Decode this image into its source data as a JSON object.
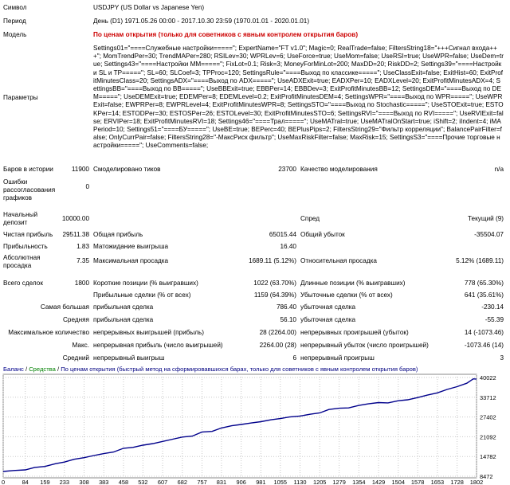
{
  "header": {
    "symbol_label": "Символ",
    "symbol_value": "USDJPY (US Dollar vs Japanese Yen)",
    "period_label": "Период",
    "period_value": "День (D1) 1971.05.26 00:00 - 2017.10.30 23:59 (1970.01.01 - 2020.01.01)",
    "model_label": "Модель",
    "model_value": "По ценам открытия (только для советников с явным контролем открытия баров)",
    "params_label": "Параметры",
    "params_value": "Settings01=\"====Служебные настройки=====\"; ExpertName=\"FT v1.0\"; Magic=0; RealTrade=false; FiltersString18=\"+++Сигнал входа+++\"; MomTrendPer=30; TrendMAPer=280; RSILev=30; WPRLev=6; UseForce=true; UseMom=false; UseRSI=true; UseWPR=false; UseDem=true; Settings43=\"====Настройки MM=====\"; FixLot=0.1; Risk=3; MoneyForMinLot=200; MaxDD=20; RiskDD=2; Settings39=\"====Настройки SL и TP=====\"; SL=60; SLCoef=3; TPProc=120; SettingsRule=\"====Выход по классике=====\"; UseClassExit=false; ExitHist=60; ExitProfitMinutesClass=20; SettingsADX=\"====Выход по ADX=====\"; UseADXExit=true; EADXPer=10; EADXLevel=20; ExitProfitMinutesADX=4; SettingsBB=\"====Выход по BB=====\"; UseBBExit=true; EBBPer=14; EBBDev=3; ExitProfitMinutesBB=12; SettingsDEM=\"====Выход по DEM=====\"; UseDEMExit=true; EDEMPer=8; EDEMLevel=0.2; ExitProfitMinutesDEM=4; SettingsWPR=\"====Выход по WPR=====\"; UseWPRExit=false; EWPRPer=8; EWPRLevel=4; ExitProfitMinutesWPR=8; SettingsSTO=\"====Выход по Stochastic=====\"; UseSTOExit=true; ESTOKPer=14; ESTODPer=30; ESTOSPer=26; ESTOLevel=30; ExitProfitMinutesSTO=6; SettingsRVI=\"====Выход по RVI=====\"; UseRVIExit=false; ERVIPer=18; ExitProfitMinutesRVI=18; Settings46=\"====Трал=====\"; UseMATral=true; UseMATralOnStart=true; iShift=2; iIndent=4; iMAPeriod=10; Settings51=\"====БУ=====\"; UseBE=true; BEPerc=40; BEPlusPips=2; FiltersString29=\"Фильтр корреляции\"; BalancePairFilter=false; OnlyCurrPair=false; FiltersString28=\"-МаксРиск фильтр\"; UseMaxRiskFilter=false; MaxRisk=15; SettingsS3=\"====Прочие торговые настройки=====\"; UseComments=false;"
  },
  "stats": {
    "bars_label": "Баров в истории",
    "bars_value": "11900",
    "ticks_label": "Смоделировано тиков",
    "ticks_value": "23700",
    "quality_label": "Качество моделирования",
    "quality_value": "n/a",
    "errors_label": "Ошибки рассогласования графиков",
    "errors_value": "0",
    "deposit_label": "Начальный депозит",
    "deposit_value": "10000.00",
    "spread_label": "Спред",
    "spread_value": "Текущий (9)",
    "net_profit_label": "Чистая прибыль",
    "net_profit_value": "29511.38",
    "gross_profit_label": "Общая прибыль",
    "gross_profit_value": "65015.44",
    "gross_loss_label": "Общий убыток",
    "gross_loss_value": "-35504.07",
    "pf_label": "Прибыльность",
    "pf_value": "1.83",
    "expected_label": "Матожидание выигрыша",
    "expected_value": "16.40",
    "abs_dd_label": "Абсолютная просадка",
    "abs_dd_value": "7.35",
    "max_dd_label": "Максимальная просадка",
    "max_dd_value": "1689.11 (5.12%)",
    "rel_dd_label": "Относительная просадка",
    "rel_dd_value": "5.12% (1689.11)",
    "total_label": "Всего сделок",
    "total_value": "1800",
    "short_label": "Короткие позиции (% выигравших)",
    "short_value": "1022 (63.70%)",
    "long_label": "Длинные позиции (% выигравших)",
    "long_value": "778 (65.30%)",
    "profit_trades_label": "Прибыльные сделки (% от всех)",
    "profit_trades_value": "1159 (64.39%)",
    "loss_trades_label": "Убыточные сделки (% от всех)",
    "loss_trades_value": "641 (35.61%)",
    "largest_label": "Самая большая",
    "largest_profit_label": "прибыльная сделка",
    "largest_profit_value": "786.40",
    "largest_loss_label": "убыточная сделка",
    "largest_loss_value": "-230.14",
    "avg_label": "Средняя",
    "avg_profit_label": "прибыльная сделка",
    "avg_profit_value": "56.10",
    "avg_loss_label": "убыточная сделка",
    "avg_loss_value": "-55.39",
    "max_count_label": "Максимальное количество",
    "max_win_label": "непрерывных выигрышей (прибыль)",
    "max_win_value": "28 (2264.00)",
    "max_loss_label": "непрерывных проигрышей (убыток)",
    "max_loss_value": "14 (-1073.46)",
    "max_label": "Макс.",
    "max_cont_profit_label": "непрерывная прибыль (число выигрышей)",
    "max_cont_profit_value": "2264.00 (28)",
    "max_cont_loss_label": "непрерывный убыток (число проигрышей)",
    "max_cont_loss_value": "-1073.46 (14)",
    "avg_cons_label": "Средний",
    "avg_cons_win_label": "непрерывный выигрыш",
    "avg_cons_win_value": "6",
    "avg_cons_loss_label": "непрерывный проигрыш",
    "avg_cons_loss_value": "3"
  },
  "chart_data": {
    "type": "line",
    "legend": {
      "balance": "Баланс",
      "sep1": " / ",
      "equity": "Средства",
      "sep2": " / ",
      "note": "По ценам открытия (быстрый метод на сформировавшихся барах, только для советников с явным контролем открытия баров)"
    },
    "colors": {
      "balance": "#00008b",
      "equity": "#008000",
      "note": "#000080",
      "grid": "#c8c8c8",
      "marker": "#cc0000"
    },
    "x_ticks": [
      "0",
      "84",
      "159",
      "233",
      "308",
      "383",
      "458",
      "532",
      "607",
      "682",
      "757",
      "831",
      "906",
      "981",
      "1055",
      "1130",
      "1205",
      "1279",
      "1354",
      "1429",
      "1504",
      "1578",
      "1653",
      "1728",
      "1802"
    ],
    "y_ticks": [
      "40022",
      "33712",
      "27402",
      "21092",
      "14782",
      "8472"
    ],
    "xlim": [
      0,
      1802
    ],
    "ylim": [
      8472,
      40022
    ],
    "series": [
      {
        "x": [
          0,
          40,
          84,
          120,
          159,
          200,
          233,
          270,
          308,
          345,
          383,
          420,
          458,
          495,
          532,
          570,
          607,
          645,
          682,
          720,
          757,
          795,
          831,
          870,
          906,
          945,
          981,
          1020,
          1055,
          1090,
          1130,
          1170,
          1205,
          1240,
          1279,
          1315,
          1354,
          1390,
          1429,
          1465,
          1504,
          1540,
          1578,
          1615,
          1653,
          1690,
          1728,
          1765,
          1790,
          1802
        ],
        "values": [
          10000,
          10300,
          10500,
          11300,
          11600,
          12500,
          13000,
          13900,
          14400,
          15100,
          15700,
          16200,
          17400,
          17700,
          18400,
          18900,
          19600,
          20300,
          21000,
          21300,
          22600,
          22800,
          23900,
          24600,
          25000,
          25500,
          25900,
          26500,
          26900,
          27400,
          27700,
          28300,
          28700,
          29800,
          30200,
          30300,
          31100,
          31600,
          32000,
          31900,
          32600,
          32900,
          33600,
          34400,
          35100,
          36200,
          37100,
          38200,
          39600,
          39500
        ]
      }
    ]
  }
}
